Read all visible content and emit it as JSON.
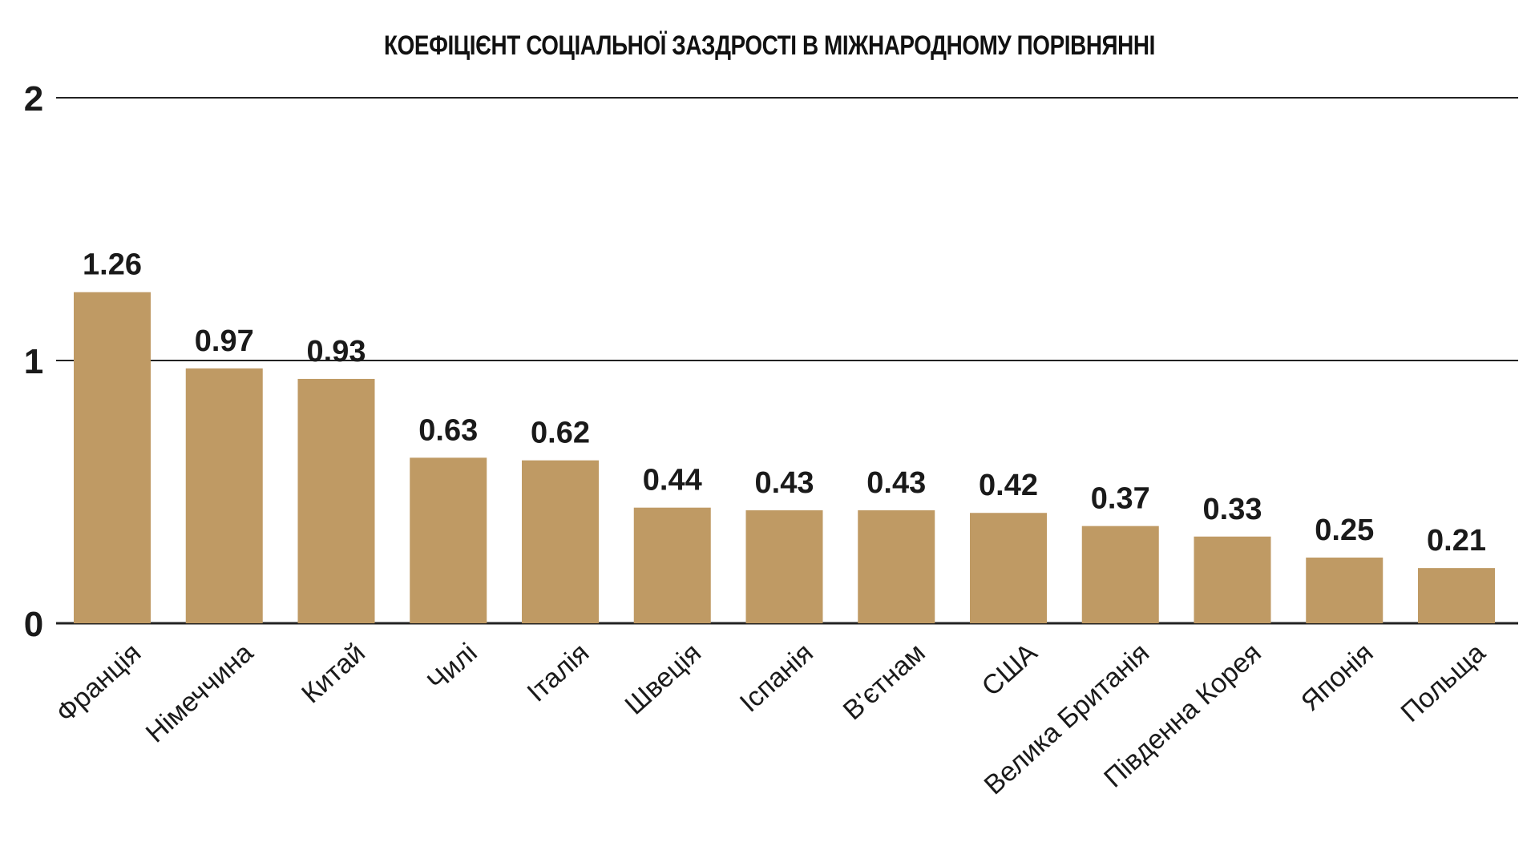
{
  "chart_data": {
    "type": "bar",
    "title": "КОЕФІЦІЄНТ СОЦІАЛЬНОЇ ЗАЗДРОСТІ В МІЖНАРОДНОМУ ПОРІВНЯННІ",
    "xlabel": "",
    "ylabel": "",
    "ylim": [
      0,
      2
    ],
    "yticks": [
      0,
      1,
      2
    ],
    "grid": true,
    "legend": "none",
    "categories": [
      "Франція",
      "Німеччина",
      "Китай",
      "Чилі",
      "Італія",
      "Швеція",
      "Іспанія",
      "В'єтнам",
      "США",
      "Велика Британія",
      "Південна Корея",
      "Японія",
      "Польща"
    ],
    "values": [
      1.26,
      0.97,
      0.93,
      0.63,
      0.62,
      0.44,
      0.43,
      0.43,
      0.42,
      0.37,
      0.33,
      0.25,
      0.21
    ],
    "value_labels": [
      "1.26",
      "0.97",
      "0.93",
      "0.63",
      "0.62",
      "0.44",
      "0.43",
      "0.43",
      "0.42",
      "0.37",
      "0.33",
      "0.25",
      "0.21"
    ],
    "colors": {
      "bar": "#bf9a64",
      "gridline": "#222222",
      "text": "#1a1a1a"
    }
  }
}
